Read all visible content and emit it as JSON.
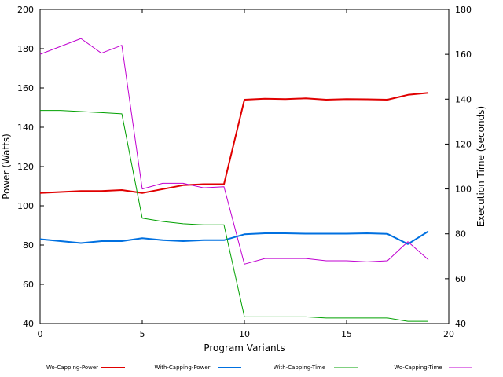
{
  "chart_data": {
    "type": "line",
    "xlabel": "Program Variants",
    "ylabel": "Power (Watts)",
    "y2label": "Execution Time (seconds)",
    "xlim": [
      0,
      20
    ],
    "ylim": [
      40,
      200
    ],
    "y2lim": [
      40,
      180
    ],
    "xticks": [
      "0",
      "5",
      "10",
      "15",
      "20"
    ],
    "yticks": [
      "40",
      "60",
      "80",
      "100",
      "120",
      "140",
      "160",
      "180",
      "200"
    ],
    "y2ticks": [
      "40",
      "60",
      "80",
      "100",
      "120",
      "140",
      "160",
      "180"
    ],
    "grid": false,
    "legend_position": "bottom",
    "series": [
      {
        "name": "Wo-Capping-Power",
        "axis": "left",
        "color": "#e00000",
        "x": [
          0,
          1,
          2,
          3,
          4,
          5,
          6,
          7,
          8,
          9,
          10,
          11,
          12,
          13,
          14,
          15,
          16,
          17,
          18,
          19
        ],
        "values": [
          106.5,
          107,
          107.5,
          107.5,
          108,
          106.5,
          108.5,
          110.5,
          111,
          111,
          154,
          154.5,
          154.3,
          154.7,
          154,
          154.3,
          154.2,
          154,
          156.5,
          157.5
        ]
      },
      {
        "name": "With-Capping-Power",
        "axis": "left",
        "color": "#0070e0",
        "x": [
          0,
          1,
          2,
          3,
          4,
          5,
          6,
          7,
          8,
          9,
          10,
          11,
          12,
          13,
          14,
          15,
          16,
          17,
          18,
          19
        ],
        "values": [
          83,
          82,
          81,
          82,
          82,
          83.5,
          82.5,
          82,
          82.5,
          82.5,
          85.5,
          86,
          86,
          85.8,
          85.8,
          85.8,
          86,
          85.7,
          80.5,
          87
        ]
      },
      {
        "name": "With-Capping-Time",
        "axis": "right",
        "color": "#00a000",
        "x": [
          0,
          1,
          2,
          3,
          4,
          5,
          6,
          7,
          8,
          9,
          10,
          11,
          12,
          13,
          14,
          15,
          16,
          17,
          18,
          19
        ],
        "values": [
          135,
          135,
          134.5,
          134,
          133.5,
          87,
          85.5,
          84.5,
          84,
          84,
          43,
          43,
          43,
          43,
          42.5,
          42.5,
          42.5,
          42.5,
          41,
          41
        ]
      },
      {
        "name": "Wo-Capping-Time",
        "axis": "right",
        "color": "#c000d0",
        "x": [
          0,
          1,
          2,
          3,
          4,
          5,
          6,
          7,
          8,
          9,
          10,
          11,
          12,
          13,
          14,
          15,
          16,
          17,
          18,
          19
        ],
        "values": [
          160,
          163.5,
          167,
          160.5,
          164,
          100,
          102.5,
          102.5,
          100.5,
          101,
          66.5,
          69,
          69,
          69,
          68,
          68,
          67.5,
          68,
          76.5,
          68.5
        ]
      }
    ]
  }
}
